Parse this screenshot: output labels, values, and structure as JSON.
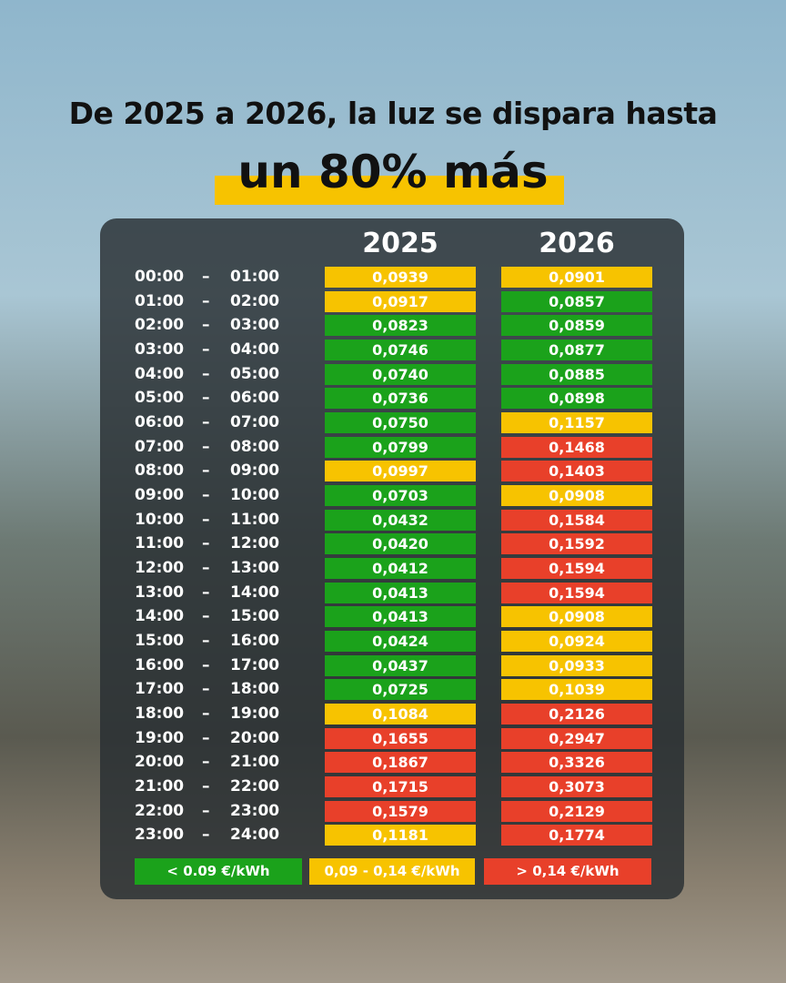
{
  "title_line1": "De 2025 a 2026, la luz se dispara hasta",
  "title_line2": "un 80% más",
  "table": {
    "headers": [
      "2025",
      "2026"
    ],
    "separator": "–",
    "rows": [
      [
        "00:00",
        "01:00",
        "0,0939",
        "0,0901"
      ],
      [
        "01:00",
        "02:00",
        "0,0917",
        "0,0857"
      ],
      [
        "02:00",
        "03:00",
        "0,0823",
        "0,0859"
      ],
      [
        "03:00",
        "04:00",
        "0,0746",
        "0,0877"
      ],
      [
        "04:00",
        "05:00",
        "0,0740",
        "0,0885"
      ],
      [
        "05:00",
        "06:00",
        "0,0736",
        "0,0898"
      ],
      [
        "06:00",
        "07:00",
        "0,0750",
        "0,1157"
      ],
      [
        "07:00",
        "08:00",
        "0,0799",
        "0,1468"
      ],
      [
        "08:00",
        "09:00",
        "0,0997",
        "0,1403"
      ],
      [
        "09:00",
        "10:00",
        "0,0703",
        "0,0908"
      ],
      [
        "10:00",
        "11:00",
        "0,0432",
        "0,1584"
      ],
      [
        "11:00",
        "12:00",
        "0,0420",
        "0,1592"
      ],
      [
        "12:00",
        "13:00",
        "0,0412",
        "0,1594"
      ],
      [
        "13:00",
        "14:00",
        "0,0413",
        "0,1594"
      ],
      [
        "14:00",
        "15:00",
        "0,0413",
        "0,0908"
      ],
      [
        "15:00",
        "16:00",
        "0,0424",
        "0,0924"
      ],
      [
        "16:00",
        "17:00",
        "0,0437",
        "0,0933"
      ],
      [
        "17:00",
        "18:00",
        "0,0725",
        "0,1039"
      ],
      [
        "18:00",
        "19:00",
        "0,1084",
        "0,2126"
      ],
      [
        "19:00",
        "20:00",
        "0,1655",
        "0,2947"
      ],
      [
        "20:00",
        "21:00",
        "0,1867",
        "0,3326"
      ],
      [
        "21:00",
        "22:00",
        "0,1715",
        "0,3073"
      ],
      [
        "22:00",
        "23:00",
        "0,1579",
        "0,2129"
      ],
      [
        "23:00",
        "24:00",
        "0,1181",
        "0,1774"
      ]
    ],
    "cell_colors": [
      [
        "#f7c300",
        "#f7c300"
      ],
      [
        "#f7c300",
        "#1ba21b"
      ],
      [
        "#1ba21b",
        "#1ba21b"
      ],
      [
        "#1ba21b",
        "#1ba21b"
      ],
      [
        "#1ba21b",
        "#1ba21b"
      ],
      [
        "#1ba21b",
        "#1ba21b"
      ],
      [
        "#1ba21b",
        "#f7c300"
      ],
      [
        "#1ba21b",
        "#e8402a"
      ],
      [
        "#f7c300",
        "#e8402a"
      ],
      [
        "#1ba21b",
        "#f7c300"
      ],
      [
        "#1ba21b",
        "#e8402a"
      ],
      [
        "#1ba21b",
        "#e8402a"
      ],
      [
        "#1ba21b",
        "#e8402a"
      ],
      [
        "#1ba21b",
        "#e8402a"
      ],
      [
        "#1ba21b",
        "#f7c300"
      ],
      [
        "#1ba21b",
        "#f7c300"
      ],
      [
        "#1ba21b",
        "#f7c300"
      ],
      [
        "#1ba21b",
        "#f7c300"
      ],
      [
        "#f7c300",
        "#e8402a"
      ],
      [
        "#e8402a",
        "#e8402a"
      ],
      [
        "#e8402a",
        "#e8402a"
      ],
      [
        "#e8402a",
        "#e8402a"
      ],
      [
        "#e8402a",
        "#e8402a"
      ],
      [
        "#f7c300",
        "#e8402a"
      ]
    ]
  },
  "legend": [
    {
      "label": "< 0.09 €/kWh",
      "color": "#1ba21b"
    },
    {
      "label": "0,09 - 0,14 €/kWh",
      "color": "#f7c300"
    },
    {
      "label": "> 0,14 €/kWh",
      "color": "#e8402a"
    }
  ]
}
